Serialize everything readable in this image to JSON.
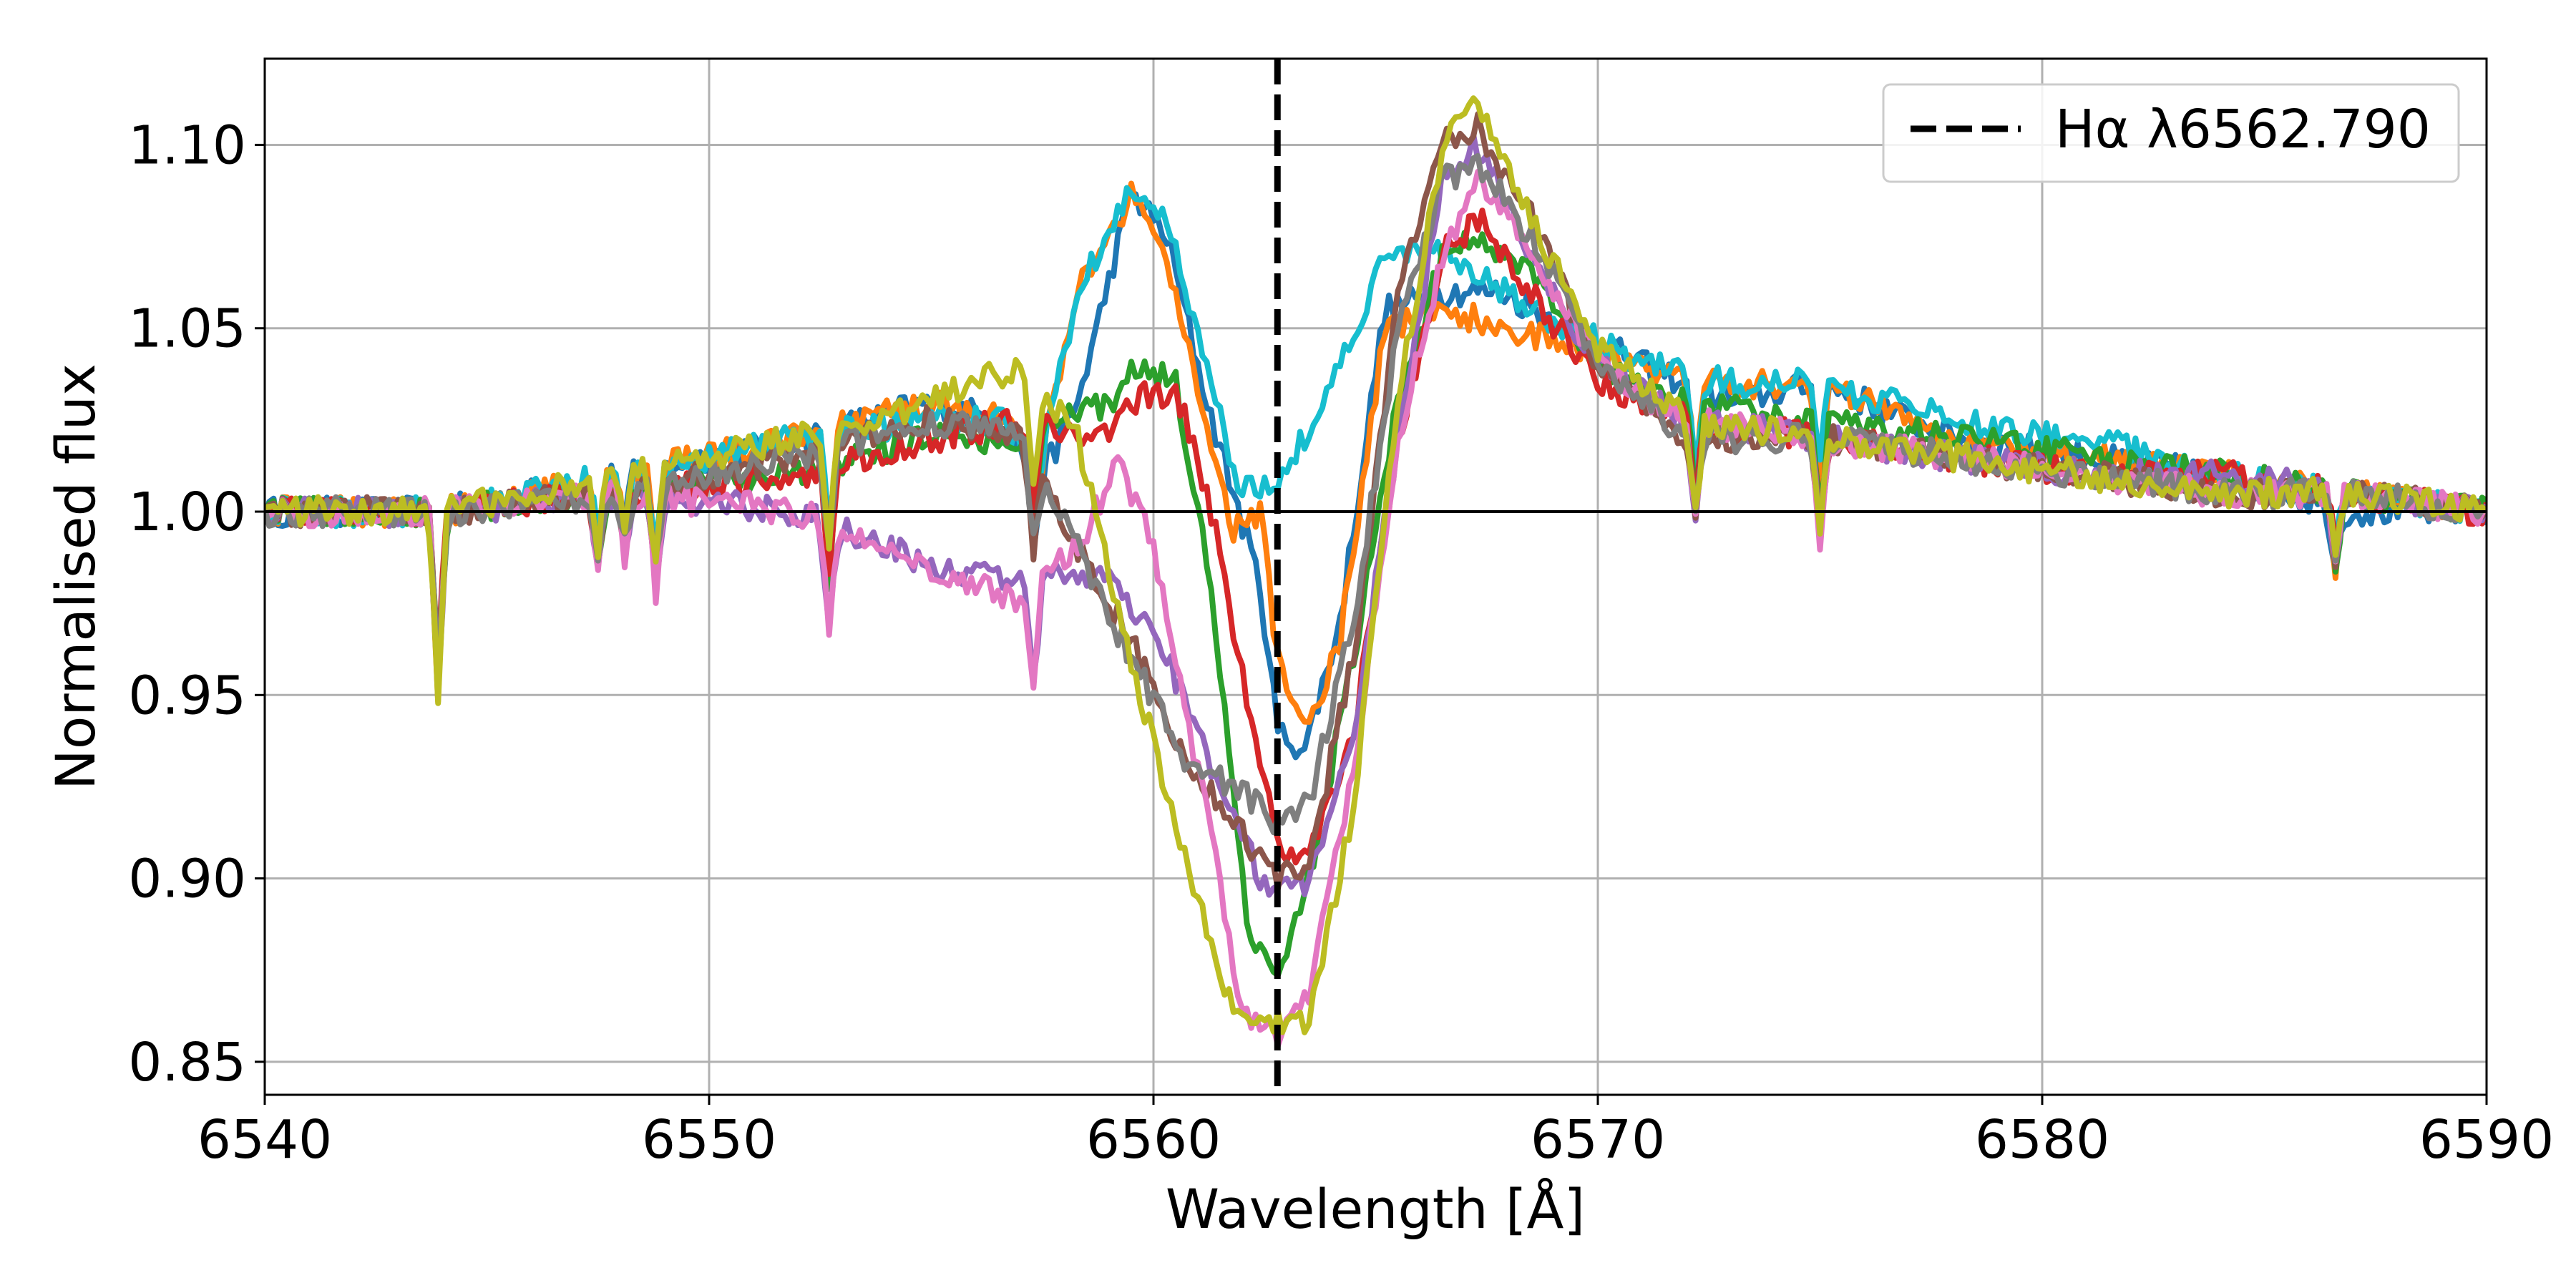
{
  "chart_data": {
    "type": "line",
    "xlabel": "Wavelength [Å]",
    "ylabel": "Normalised flux",
    "xlim": [
      6540,
      6590
    ],
    "ylim": [
      0.841,
      1.1235
    ],
    "x_ticks": [
      6540,
      6550,
      6560,
      6570,
      6580,
      6590
    ],
    "x_tick_labels": [
      "6540",
      "6550",
      "6560",
      "6570",
      "6580",
      "6590"
    ],
    "y_ticks": [
      0.85,
      0.9,
      0.95,
      1.0,
      1.05,
      1.1
    ],
    "y_tick_labels": [
      "0.85",
      "0.90",
      "0.95",
      "1.00",
      "1.05",
      "1.10"
    ],
    "grid": true,
    "legend_position": "top-right",
    "legend": [
      {
        "label": "Hα λ6562.790",
        "style": "dashed",
        "color": "#000000"
      }
    ],
    "reference_line": {
      "x": 6562.79,
      "style": "dashed",
      "color": "#000000",
      "label": "Hα λ6562.790"
    },
    "horizontal_line": {
      "y": 1.0,
      "color": "#000000"
    },
    "absorption_lines": [
      {
        "x": 6543.9,
        "depth": 0.055
      },
      {
        "x": 6547.5,
        "depth": 0.02
      },
      {
        "x": 6548.1,
        "depth": 0.018
      },
      {
        "x": 6548.8,
        "depth": 0.03
      },
      {
        "x": 6552.7,
        "depth": 0.035
      },
      {
        "x": 6557.3,
        "depth": 0.03
      },
      {
        "x": 6572.2,
        "depth": 0.03
      },
      {
        "x": 6575.0,
        "depth": 0.03
      },
      {
        "x": 6586.6,
        "depth": 0.022
      }
    ],
    "series": [
      {
        "color": "#1f77b4",
        "values": [
          [
            6540,
            1.0
          ],
          [
            6544,
            1.0
          ],
          [
            6548,
            1.01
          ],
          [
            6552,
            1.02
          ],
          [
            6555,
            1.03
          ],
          [
            6556.5,
            1.025
          ],
          [
            6557.5,
            1.01
          ],
          [
            6558.3,
            1.03
          ],
          [
            6559.5,
            1.087
          ],
          [
            6560.3,
            1.075
          ],
          [
            6561.2,
            1.03
          ],
          [
            6561.8,
            1.005
          ],
          [
            6562.4,
            0.98
          ],
          [
            6562.8,
            0.94
          ],
          [
            6563.4,
            0.935
          ],
          [
            6564.2,
            0.97
          ],
          [
            6565.2,
            1.055
          ],
          [
            6566.6,
            1.06
          ],
          [
            6567.8,
            1.06
          ],
          [
            6569.4,
            1.05
          ],
          [
            6571,
            1.04
          ],
          [
            6573,
            1.03
          ],
          [
            6575,
            1.035
          ],
          [
            6578,
            1.02
          ],
          [
            6581,
            1.015
          ],
          [
            6584,
            1.01
          ],
          [
            6587,
            1.0
          ],
          [
            6590,
            1.0
          ]
        ]
      },
      {
        "color": "#ff7f0e",
        "values": [
          [
            6540,
            1.0
          ],
          [
            6544,
            1.0
          ],
          [
            6548,
            1.01
          ],
          [
            6552,
            1.02
          ],
          [
            6555,
            1.03
          ],
          [
            6556.5,
            1.025
          ],
          [
            6557.5,
            1.015
          ],
          [
            6558.3,
            1.06
          ],
          [
            6559.5,
            1.086
          ],
          [
            6560.3,
            1.07
          ],
          [
            6561.2,
            1.02
          ],
          [
            6561.8,
            0.995
          ],
          [
            6562.4,
            1.0
          ],
          [
            6562.8,
            0.96
          ],
          [
            6563.4,
            0.94
          ],
          [
            6564.2,
            0.965
          ],
          [
            6565.2,
            1.05
          ],
          [
            6566.6,
            1.055
          ],
          [
            6567.8,
            1.05
          ],
          [
            6569.4,
            1.045
          ],
          [
            6571,
            1.04
          ],
          [
            6573,
            1.035
          ],
          [
            6575,
            1.035
          ],
          [
            6578,
            1.02
          ],
          [
            6581,
            1.015
          ],
          [
            6584,
            1.01
          ],
          [
            6587,
            1.005
          ],
          [
            6590,
            1.0
          ]
        ]
      },
      {
        "color": "#17becf",
        "values": [
          [
            6540,
            1.0
          ],
          [
            6544,
            1.0
          ],
          [
            6548,
            1.01
          ],
          [
            6552,
            1.02
          ],
          [
            6555,
            1.025
          ],
          [
            6556.5,
            1.025
          ],
          [
            6557.5,
            1.015
          ],
          [
            6558.3,
            1.06
          ],
          [
            6559.5,
            1.087
          ],
          [
            6560.3,
            1.08
          ],
          [
            6561.2,
            1.04
          ],
          [
            6561.8,
            1.01
          ],
          [
            6562.4,
            1.005
          ],
          [
            6562.8,
            1.01
          ],
          [
            6563.4,
            1.02
          ],
          [
            6564.2,
            1.04
          ],
          [
            6565.2,
            1.07
          ],
          [
            6566.6,
            1.07
          ],
          [
            6567.8,
            1.06
          ],
          [
            6569.4,
            1.05
          ],
          [
            6571,
            1.04
          ],
          [
            6573,
            1.035
          ],
          [
            6575,
            1.035
          ],
          [
            6578,
            1.025
          ],
          [
            6581,
            1.02
          ],
          [
            6584,
            1.01
          ],
          [
            6587,
            1.005
          ],
          [
            6590,
            1.0
          ]
        ]
      },
      {
        "color": "#2ca02c",
        "values": [
          [
            6540,
            1.0
          ],
          [
            6544,
            1.0
          ],
          [
            6548,
            1.005
          ],
          [
            6552,
            1.01
          ],
          [
            6555,
            1.02
          ],
          [
            6557,
            1.02
          ],
          [
            6559,
            1.03
          ],
          [
            6559.7,
            1.04
          ],
          [
            6560.5,
            1.035
          ],
          [
            6561.3,
            0.98
          ],
          [
            6562.2,
            0.88
          ],
          [
            6562.8,
            0.875
          ],
          [
            6563.5,
            0.9
          ],
          [
            6564.5,
            0.96
          ],
          [
            6565.5,
            1.03
          ],
          [
            6566.5,
            1.07
          ],
          [
            6567.3,
            1.075
          ],
          [
            6568.5,
            1.065
          ],
          [
            6570,
            1.04
          ],
          [
            6572,
            1.03
          ],
          [
            6575,
            1.025
          ],
          [
            6578,
            1.02
          ],
          [
            6581,
            1.015
          ],
          [
            6584,
            1.01
          ],
          [
            6587,
            1.005
          ],
          [
            6590,
            1.0
          ]
        ]
      },
      {
        "color": "#d62728",
        "values": [
          [
            6540,
            1.0
          ],
          [
            6544,
            1.0
          ],
          [
            6548,
            1.005
          ],
          [
            6552,
            1.01
          ],
          [
            6555,
            1.02
          ],
          [
            6557,
            1.025
          ],
          [
            6559,
            1.02
          ],
          [
            6559.8,
            1.033
          ],
          [
            6560.6,
            1.03
          ],
          [
            6561.5,
            0.99
          ],
          [
            6562.2,
            0.94
          ],
          [
            6562.8,
            0.91
          ],
          [
            6563.5,
            0.905
          ],
          [
            6564.5,
            0.94
          ],
          [
            6565.5,
            1.02
          ],
          [
            6566.5,
            1.07
          ],
          [
            6567.3,
            1.08
          ],
          [
            6568.5,
            1.06
          ],
          [
            6570,
            1.035
          ],
          [
            6572,
            1.025
          ],
          [
            6575,
            1.02
          ],
          [
            6578,
            1.015
          ],
          [
            6581,
            1.01
          ],
          [
            6584,
            1.01
          ],
          [
            6587,
            1.005
          ],
          [
            6590,
            1.0
          ]
        ]
      },
      {
        "color": "#9467bd",
        "values": [
          [
            6540,
            1.0
          ],
          [
            6544,
            1.0
          ],
          [
            6548,
            1.005
          ],
          [
            6552,
            1.0
          ],
          [
            6555,
            0.985
          ],
          [
            6557,
            0.98
          ],
          [
            6559,
            0.985
          ],
          [
            6560.3,
            0.96
          ],
          [
            6561.5,
            0.925
          ],
          [
            6562.4,
            0.9
          ],
          [
            6562.8,
            0.895
          ],
          [
            6563.5,
            0.9
          ],
          [
            6564.5,
            0.94
          ],
          [
            6565.5,
            1.02
          ],
          [
            6566.5,
            1.09
          ],
          [
            6567.3,
            1.1
          ],
          [
            6568.5,
            1.07
          ],
          [
            6570,
            1.04
          ],
          [
            6572,
            1.025
          ],
          [
            6575,
            1.02
          ],
          [
            6578,
            1.015
          ],
          [
            6581,
            1.01
          ],
          [
            6584,
            1.01
          ],
          [
            6587,
            1.005
          ],
          [
            6590,
            1.0
          ]
        ]
      },
      {
        "color": "#8c564b",
        "values": [
          [
            6540,
            1.0
          ],
          [
            6544,
            1.0
          ],
          [
            6548,
            1.005
          ],
          [
            6552,
            1.015
          ],
          [
            6555,
            1.025
          ],
          [
            6557,
            1.02
          ],
          [
            6558.3,
            0.99
          ],
          [
            6559.5,
            0.965
          ],
          [
            6560.8,
            0.93
          ],
          [
            6561.8,
            0.915
          ],
          [
            6562.8,
            0.9
          ],
          [
            6563.5,
            0.905
          ],
          [
            6564.5,
            0.96
          ],
          [
            6565.5,
            1.06
          ],
          [
            6566.5,
            1.1
          ],
          [
            6567.3,
            1.105
          ],
          [
            6568.5,
            1.08
          ],
          [
            6570,
            1.04
          ],
          [
            6572,
            1.02
          ],
          [
            6575,
            1.02
          ],
          [
            6578,
            1.015
          ],
          [
            6581,
            1.01
          ],
          [
            6584,
            1.005
          ],
          [
            6587,
            1.005
          ],
          [
            6590,
            1.0
          ]
        ]
      },
      {
        "color": "#e377c2",
        "values": [
          [
            6540,
            1.0
          ],
          [
            6544,
            1.0
          ],
          [
            6548,
            1.005
          ],
          [
            6552,
            1.0
          ],
          [
            6555,
            0.985
          ],
          [
            6557,
            0.975
          ],
          [
            6558.5,
            0.995
          ],
          [
            6559.2,
            1.015
          ],
          [
            6560,
            0.99
          ],
          [
            6561,
            0.93
          ],
          [
            6562,
            0.865
          ],
          [
            6562.8,
            0.855
          ],
          [
            6563.5,
            0.87
          ],
          [
            6564.5,
            0.93
          ],
          [
            6565.5,
            1.02
          ],
          [
            6566.5,
            1.07
          ],
          [
            6567.3,
            1.09
          ],
          [
            6568.5,
            1.07
          ],
          [
            6570,
            1.04
          ],
          [
            6572,
            1.025
          ],
          [
            6575,
            1.02
          ],
          [
            6578,
            1.015
          ],
          [
            6581,
            1.01
          ],
          [
            6584,
            1.005
          ],
          [
            6587,
            1.005
          ],
          [
            6590,
            1.0
          ]
        ]
      },
      {
        "color": "#7f7f7f",
        "values": [
          [
            6540,
            1.0
          ],
          [
            6544,
            1.0
          ],
          [
            6548,
            1.005
          ],
          [
            6552,
            1.015
          ],
          [
            6555,
            1.025
          ],
          [
            6557,
            1.02
          ],
          [
            6558.5,
            0.985
          ],
          [
            6559.5,
            0.96
          ],
          [
            6560.8,
            0.93
          ],
          [
            6561.8,
            0.925
          ],
          [
            6562.8,
            0.915
          ],
          [
            6563.5,
            0.92
          ],
          [
            6564.5,
            0.97
          ],
          [
            6565.5,
            1.05
          ],
          [
            6566.5,
            1.09
          ],
          [
            6567.3,
            1.095
          ],
          [
            6568.5,
            1.075
          ],
          [
            6570,
            1.04
          ],
          [
            6572,
            1.02
          ],
          [
            6575,
            1.02
          ],
          [
            6578,
            1.015
          ],
          [
            6581,
            1.01
          ],
          [
            6584,
            1.005
          ],
          [
            6587,
            1.005
          ],
          [
            6590,
            1.0
          ]
        ]
      },
      {
        "color": "#bcbd22",
        "values": [
          [
            6540,
            1.0
          ],
          [
            6544,
            1.0
          ],
          [
            6548,
            1.01
          ],
          [
            6552,
            1.02
          ],
          [
            6555,
            1.03
          ],
          [
            6557,
            1.04
          ],
          [
            6558.3,
            1.02
          ],
          [
            6559.5,
            0.96
          ],
          [
            6560.8,
            0.9
          ],
          [
            6561.8,
            0.865
          ],
          [
            6562.8,
            0.86
          ],
          [
            6563.5,
            0.86
          ],
          [
            6564.5,
            0.92
          ],
          [
            6565.5,
            1.03
          ],
          [
            6566.5,
            1.1
          ],
          [
            6567.3,
            1.11
          ],
          [
            6568.5,
            1.08
          ],
          [
            6570,
            1.045
          ],
          [
            6572,
            1.025
          ],
          [
            6575,
            1.02
          ],
          [
            6578,
            1.015
          ],
          [
            6581,
            1.01
          ],
          [
            6584,
            1.005
          ],
          [
            6587,
            1.005
          ],
          [
            6590,
            1.0
          ]
        ]
      }
    ]
  }
}
